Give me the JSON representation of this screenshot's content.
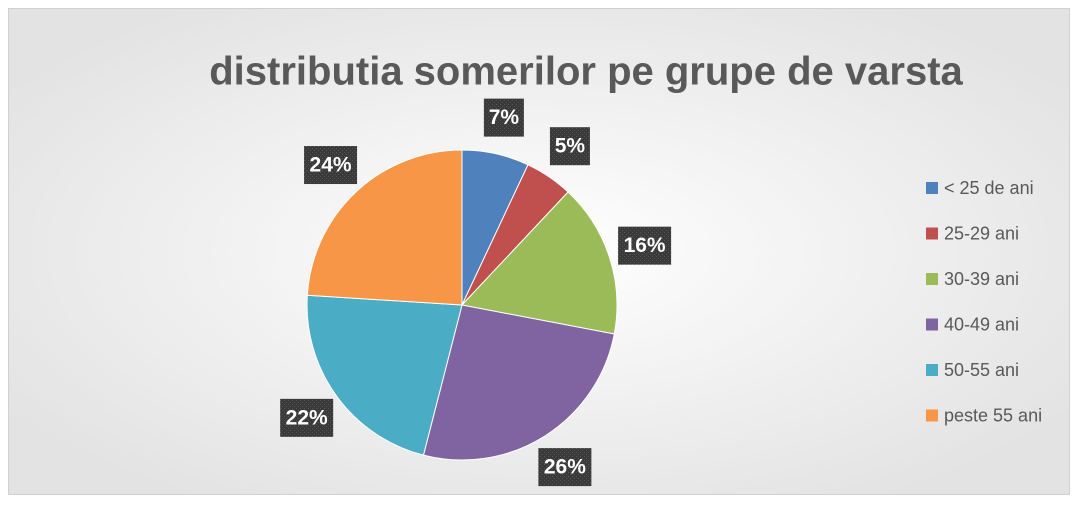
{
  "chart_data": {
    "type": "pie",
    "title": "distributia somerilor pe grupe de varsta",
    "categories": [
      "< 25 de ani",
      "25-29 ani",
      "30-39 ani",
      "40-49 ani",
      "50-55 ani",
      "peste 55 ani"
    ],
    "values": [
      7,
      5,
      16,
      26,
      22,
      24
    ],
    "value_labels": [
      "7%",
      "5%",
      "16%",
      "26%",
      "22%",
      "24%"
    ],
    "colors": [
      "#4f81bd",
      "#c0504d",
      "#9bbb59",
      "#8064a2",
      "#4bacc6",
      "#f79646"
    ],
    "legend": "right"
  }
}
